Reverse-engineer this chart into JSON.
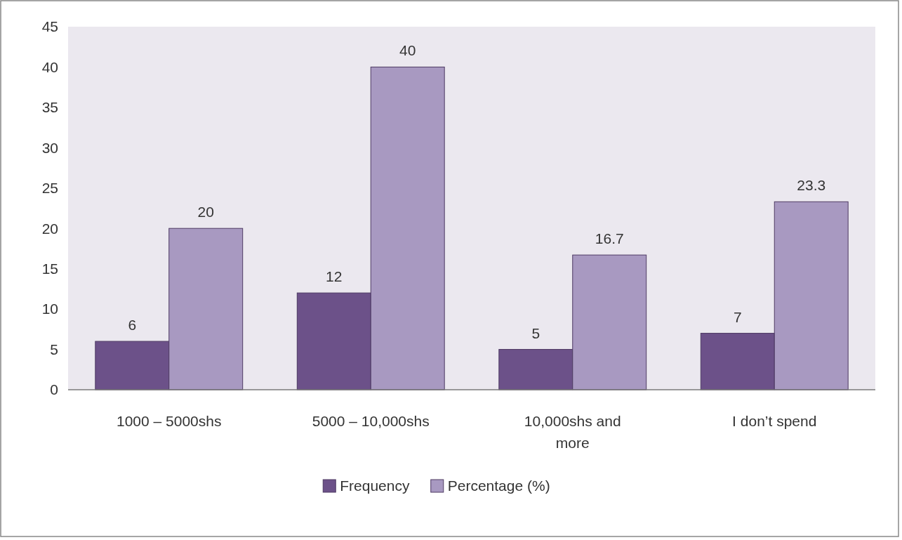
{
  "chart_data": {
    "type": "bar",
    "categories": [
      "1000 – 5000shs",
      "5000 – 10,000shs",
      "10,000shs and more",
      "I don’t spend"
    ],
    "series": [
      {
        "name": "Frequency",
        "color": "#6c5189",
        "values": [
          6,
          12,
          5,
          7
        ]
      },
      {
        "name": "Percentage (%)",
        "color": "#a899c1",
        "values": [
          20,
          40,
          16.7,
          23.3
        ]
      }
    ],
    "ylim": [
      0,
      45
    ],
    "yticks": [
      0,
      5,
      10,
      15,
      20,
      25,
      30,
      35,
      40,
      45
    ],
    "data_labels": true,
    "legend": "bottom",
    "grid": false
  }
}
